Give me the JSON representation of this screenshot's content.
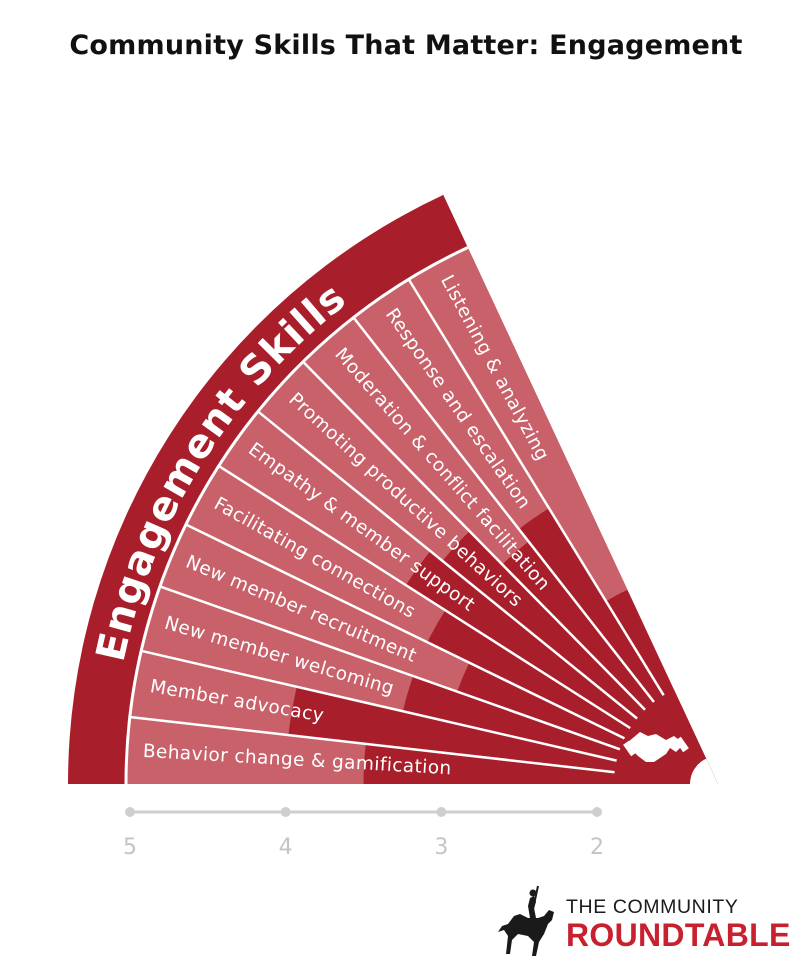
{
  "title": "Community Skills That Matter: Engagement",
  "colors": {
    "band": "#a81f2b",
    "segment_dark": "#a81f2b",
    "segment_light": "#c9616a",
    "divider": "#ffffff",
    "axis": "#cfcfcf",
    "axis_text": "#c4c4c4",
    "logo_red": "#c8202f"
  },
  "chart_data": {
    "type": "bar",
    "title": "Community Skills That Matter: Engagement",
    "band_label": "Engagement Skills",
    "center_icon": "handshake-icon",
    "scale": {
      "ticks": [
        "5",
        "4",
        "3",
        "2"
      ],
      "min": 2,
      "max": 5,
      "direction": "decreasing-outward"
    },
    "categories": [
      "Behavior change & gamification",
      "Member advocacy",
      "New member welcoming",
      "New member recruitment",
      "Facilitating connections",
      "Empathy & member support",
      "Promoting productive behaviors",
      "Moderation & conflict facilitation",
      "Response and escalation",
      "Listening & analyzing"
    ],
    "values": [
      3.5,
      4.0,
      3.3,
      3.0,
      3.3,
      3.6,
      3.5,
      3.2,
      3.3,
      2.6
    ]
  },
  "logo": {
    "line1": "THE COMMUNITY",
    "line2": "ROUNDTABLE",
    "icon": "horse-rider-icon"
  }
}
